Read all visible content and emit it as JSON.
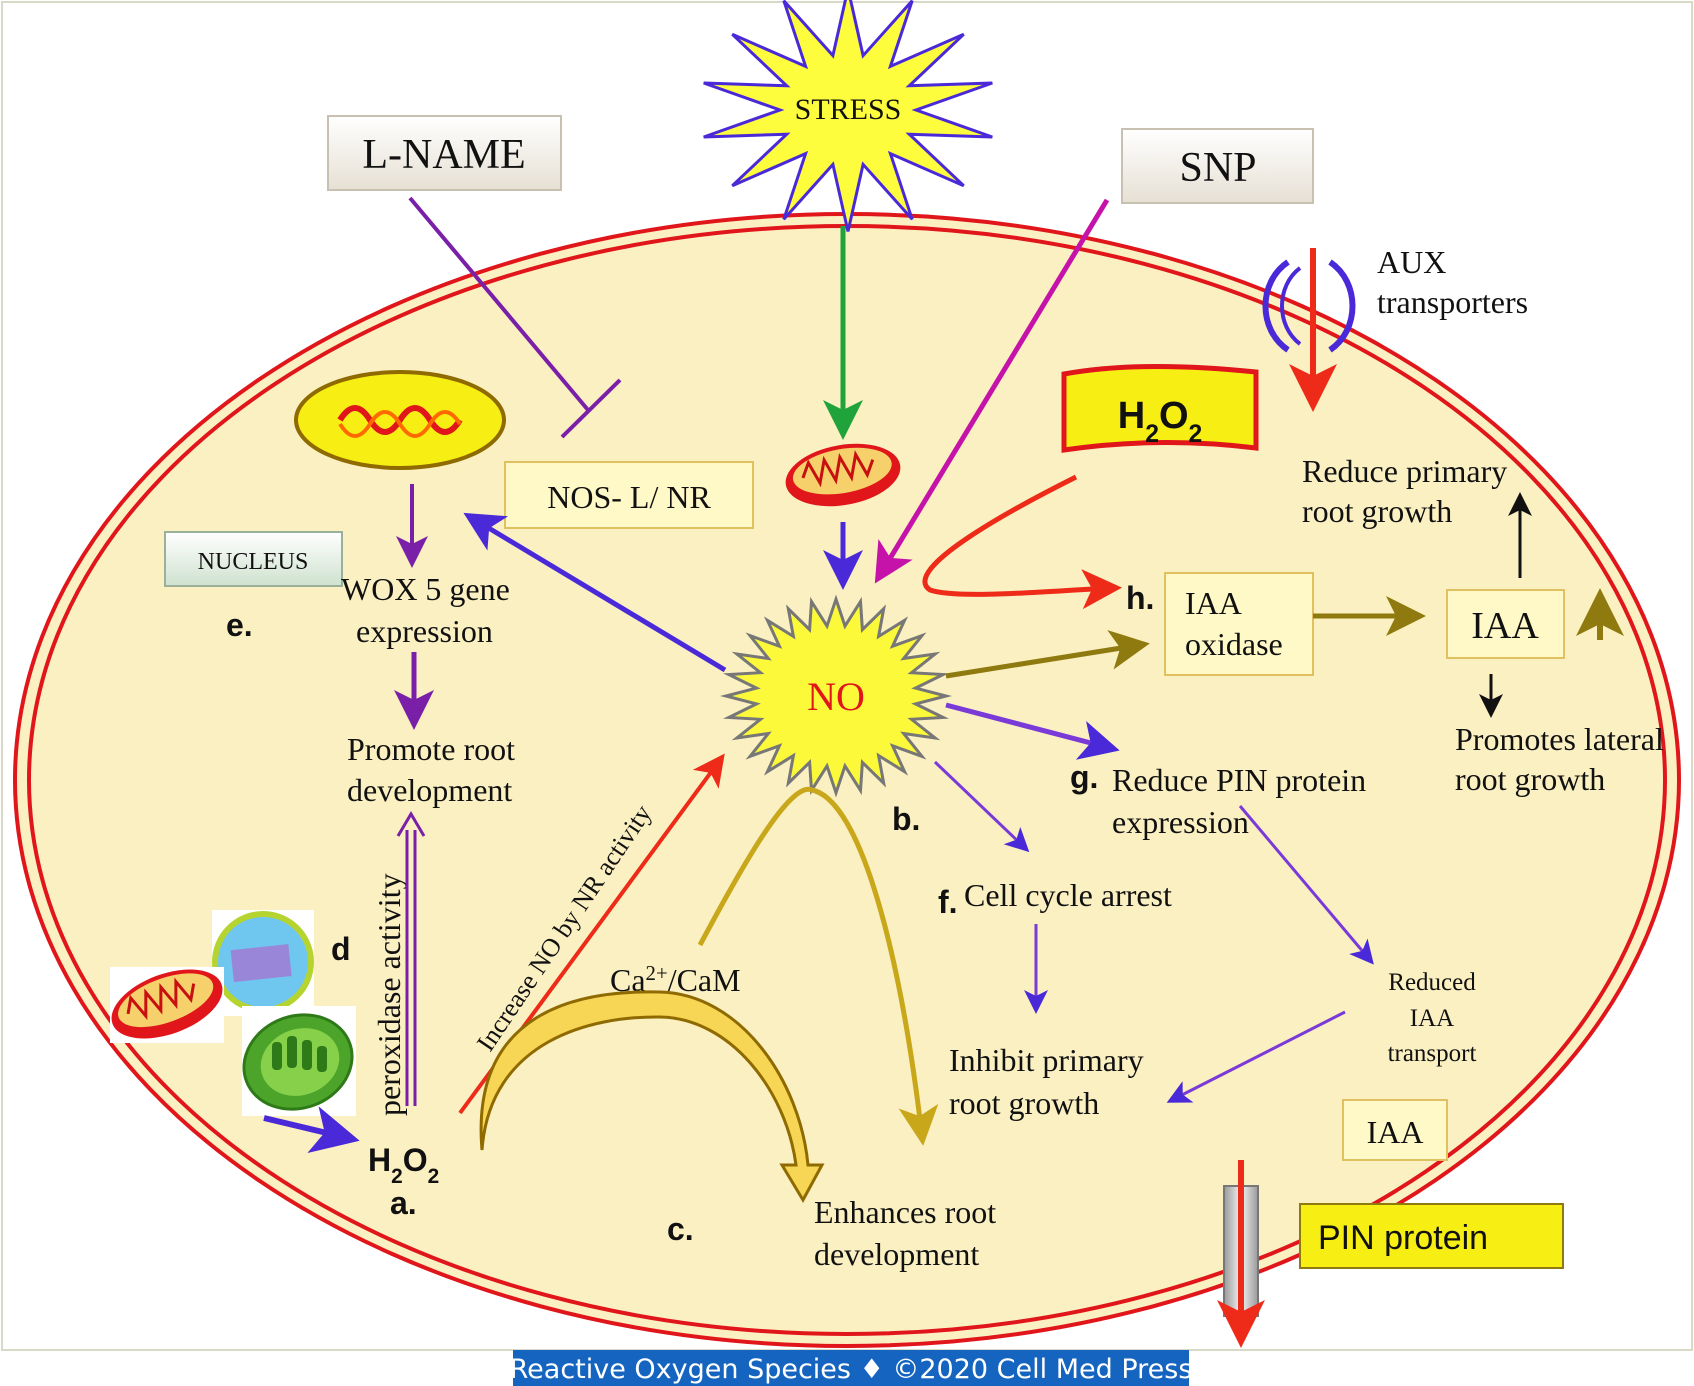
{
  "labels": {
    "stress": "STRESS",
    "lname": "L-NAME",
    "snp": "SNP",
    "aux_1": "AUX",
    "aux_2": "transporters",
    "h2o2_top": "H2O2",
    "nos": "NOS- L/ NR",
    "nucleus": "NUCLEUS",
    "wox_1": "WOX 5 gene",
    "wox_2": "expression",
    "e": "e.",
    "promote_root_1": "Promote root",
    "promote_root_2": "development",
    "no": "NO",
    "reduce_primary_1": "Reduce primary",
    "reduce_primary_2": "root growth",
    "h": "h.",
    "iaa_oxidase_1": "IAA",
    "iaa_oxidase_2": "oxidase",
    "iaa_box": "IAA",
    "promotes_lateral_1": "Promotes lateral",
    "promotes_lateral_2": "root growth",
    "g": "g.",
    "reduce_pin_1": "Reduce PIN protein",
    "reduce_pin_2": "expression",
    "b": "b.",
    "f": "f.",
    "cell_cycle": "Cell cycle arrest",
    "reduced_iaa_1": "Reduced",
    "reduced_iaa_2": "IAA",
    "reduced_iaa_3": "transport",
    "inhibit_primary_1": "Inhibit primary",
    "inhibit_primary_2": "root growth",
    "d": "d",
    "peroxidase": "peroxidase activity",
    "increase_no": "Increase NO by NR activity",
    "ca_cam": "Ca2+/CaM",
    "h2o2_bottom": "H2O2",
    "a": "a.",
    "c": "c.",
    "enhances_1": "Enhances root",
    "enhances_2": "development",
    "iaa_bottom": "IAA",
    "pin_protein": "PIN protein"
  },
  "footer": "Reactive Oxygen Species ♦ ©2020 Cell Med Press",
  "colors": {
    "cell_fill": "#fbf0c2",
    "membrane": "#e0161b",
    "stress_star": "#fdfc3d",
    "star_border": "#4a2ad8",
    "no_star": "#fbf93a",
    "no_text": "#e0161b",
    "box_fill": "#fff9c8",
    "box_border": "#e0c060",
    "blue_arrow": "#4a2ad8",
    "purple_arrow": "#7a1fa8",
    "magenta_arrow": "#c512a8",
    "green_arrow": "#1fa33a",
    "red_arrow": "#ee2a18",
    "olive_arrow": "#8f7a10",
    "gold_arrow": "#c9a71a",
    "footer_bg": "#1565c0"
  },
  "icons": [
    "starburst-stress",
    "starburst-no",
    "mitochondrion-icon",
    "chloroplast-icon",
    "peroxisome-icon",
    "dna-helix-icon",
    "aux-transporter-icon",
    "pin-channel-icon"
  ]
}
